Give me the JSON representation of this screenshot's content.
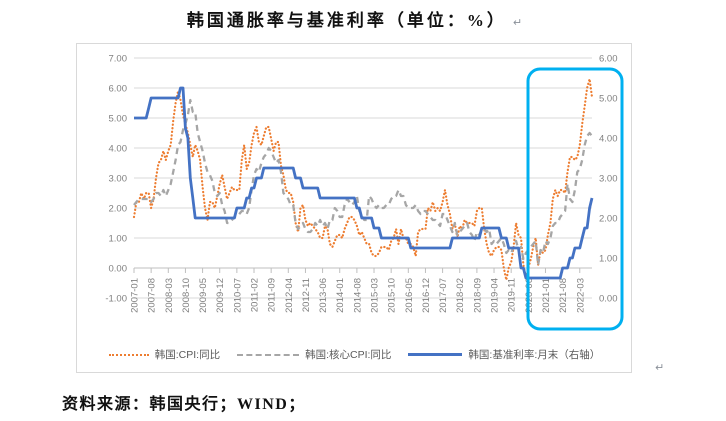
{
  "title": {
    "text": "韩国通胀率与基准利率（单位：%）",
    "paragraph_mark": "↵"
  },
  "source_note": "资料来源：韩国央行；WIND；",
  "trailing_paragraph_mark": "↵",
  "colors": {
    "cpi": "#ED7D31",
    "core_cpi": "#A6A6A6",
    "base_rate": "#4472C4",
    "highlight_box": "#00B0F0",
    "gridline": "#D9D9D9",
    "axis_line": "#BFBFBF",
    "axis_text": "#808080"
  },
  "chart_data": {
    "type": "line",
    "title": "韩国通胀率与基准利率（单位：%）",
    "grid": true,
    "legend_position": "bottom",
    "x_start": "2007-01",
    "x_end": "2022-08",
    "frequency": "monthly",
    "x_tick_labels": [
      "2007-01",
      "2007-08",
      "2008-03",
      "2008-10",
      "2009-05",
      "2009-12",
      "2010-07",
      "2011-02",
      "2011-09",
      "2012-04",
      "2012-11",
      "2013-06",
      "2014-01",
      "2014-08",
      "2015-03",
      "2015-10",
      "2016-05",
      "2016-12",
      "2017-07",
      "2018-02",
      "2018-09",
      "2019-04",
      "2019-11",
      "2020-06",
      "2021-01",
      "2021-08",
      "2022-03"
    ],
    "x_tick_step_months": 7,
    "left_axis": {
      "min": -1,
      "max": 7,
      "tick_labels": [
        "7.00",
        "6.00",
        "5.00",
        "4.00",
        "3.00",
        "2.00",
        "1.00",
        "0.00",
        "-1.00"
      ]
    },
    "right_axis": {
      "min": 0,
      "max": 6,
      "tick_labels": [
        "6.00",
        "5.00",
        "4.00",
        "3.00",
        "2.00",
        "1.00",
        "0.00"
      ]
    },
    "highlight_box": {
      "color": "#00B0F0",
      "covers_from": "2020-12",
      "covers_to": "2022-08"
    },
    "series": [
      {
        "name": "韩国:CPI:同比",
        "axis": "left",
        "style": "dotted",
        "color": "#ED7D31",
        "values": [
          1.7,
          2.2,
          2.2,
          2.5,
          2.3,
          2.5,
          2.5,
          2.0,
          2.3,
          3.0,
          3.5,
          3.6,
          3.9,
          3.6,
          3.9,
          4.1,
          4.9,
          5.5,
          5.9,
          5.6,
          5.1,
          4.8,
          4.5,
          4.1,
          3.7,
          4.1,
          3.9,
          3.6,
          2.7,
          2.0,
          1.6,
          2.2,
          2.2,
          2.0,
          2.4,
          2.8,
          3.1,
          2.7,
          2.3,
          2.5,
          2.7,
          2.6,
          2.6,
          2.6,
          3.6,
          4.1,
          3.3,
          3.5,
          4.1,
          4.5,
          4.7,
          4.2,
          4.1,
          4.4,
          4.7,
          4.7,
          4.3,
          3.9,
          4.2,
          4.2,
          3.4,
          3.1,
          2.6,
          2.5,
          2.5,
          2.2,
          1.5,
          1.2,
          2.0,
          2.1,
          1.6,
          1.4,
          1.5,
          1.4,
          1.3,
          1.2,
          1.0,
          1.0,
          1.4,
          1.3,
          0.8,
          0.7,
          0.9,
          1.1,
          1.1,
          1.0,
          1.3,
          1.5,
          1.7,
          1.7,
          1.6,
          1.4,
          1.1,
          1.2,
          1.0,
          0.8,
          0.8,
          0.5,
          0.4,
          0.4,
          0.5,
          0.7,
          0.7,
          0.7,
          0.6,
          0.9,
          1.0,
          1.3,
          0.8,
          1.3,
          1.0,
          1.0,
          0.8,
          0.8,
          0.7,
          0.4,
          1.2,
          1.3,
          1.3,
          1.3,
          2.0,
          1.9,
          2.2,
          1.9,
          2.0,
          1.9,
          2.2,
          2.6,
          2.1,
          1.8,
          1.3,
          1.5,
          1.0,
          1.4,
          1.3,
          1.6,
          1.5,
          1.5,
          1.5,
          1.4,
          1.9,
          2.0,
          2.0,
          1.3,
          0.8,
          0.5,
          0.4,
          0.6,
          0.7,
          0.7,
          0.6,
          0.0,
          -0.4,
          0.0,
          0.2,
          0.7,
          1.5,
          1.1,
          1.0,
          0.1,
          -0.3,
          0.0,
          0.3,
          0.7,
          1.0,
          0.1,
          0.6,
          0.5,
          0.6,
          1.1,
          1.5,
          2.3,
          2.6,
          2.4,
          2.6,
          2.6,
          2.5,
          3.2,
          3.7,
          3.7,
          3.6,
          3.7,
          4.1,
          4.8,
          5.4,
          6.0,
          6.3,
          5.7
        ]
      },
      {
        "name": "韩国:核心CPI:同比",
        "axis": "left",
        "style": "dashed",
        "color": "#A6A6A6",
        "values": [
          2.1,
          2.2,
          2.3,
          2.3,
          2.3,
          2.3,
          2.3,
          2.2,
          2.3,
          2.5,
          2.5,
          2.4,
          2.6,
          2.4,
          2.6,
          2.8,
          3.2,
          3.6,
          4.1,
          4.2,
          4.6,
          4.8,
          5.1,
          5.6,
          5.2,
          5.2,
          4.5,
          4.2,
          3.9,
          3.5,
          3.2,
          3.1,
          2.9,
          2.5,
          2.4,
          2.5,
          2.1,
          1.9,
          1.5,
          1.5,
          1.6,
          1.7,
          1.7,
          1.8,
          1.9,
          1.9,
          1.8,
          2.0,
          2.6,
          3.1,
          3.3,
          3.2,
          3.5,
          3.7,
          3.8,
          4.0,
          3.9,
          3.7,
          3.5,
          3.6,
          3.2,
          2.5,
          2.4,
          2.3,
          2.1,
          2.1,
          1.5,
          1.3,
          1.4,
          1.5,
          1.3,
          1.2,
          1.2,
          1.3,
          1.5,
          1.4,
          1.6,
          1.4,
          1.5,
          1.3,
          1.6,
          1.6,
          2.0,
          1.9,
          1.7,
          1.7,
          2.1,
          2.3,
          2.2,
          2.1,
          2.2,
          2.4,
          1.9,
          1.8,
          1.6,
          1.6,
          2.4,
          2.3,
          2.1,
          2.0,
          2.1,
          2.0,
          2.0,
          2.1,
          2.1,
          2.3,
          2.4,
          2.4,
          2.6,
          2.4,
          2.4,
          2.1,
          2.0,
          2.0,
          2.0,
          2.1,
          1.9,
          1.8,
          1.9,
          1.9,
          1.8,
          1.7,
          1.6,
          1.6,
          1.5,
          1.4,
          1.8,
          1.8,
          1.6,
          1.4,
          1.2,
          1.5,
          1.1,
          1.2,
          1.3,
          1.4,
          1.5,
          1.2,
          1.1,
          0.9,
          1.2,
          1.1,
          1.3,
          1.3,
          1.2,
          1.3,
          0.8,
          0.9,
          0.8,
          0.9,
          1.0,
          0.8,
          0.5,
          0.6,
          0.5,
          0.7,
          0.9,
          0.6,
          0.7,
          0.3,
          0.5,
          0.6,
          0.7,
          0.8,
          0.9,
          0.1,
          0.6,
          0.5,
          0.9,
          0.8,
          1.0,
          1.4,
          1.5,
          1.5,
          1.7,
          1.8,
          1.9,
          2.8,
          2.3,
          2.2,
          2.6,
          3.2,
          3.3,
          3.6,
          4.1,
          4.4,
          4.5,
          4.4
        ]
      },
      {
        "name": "韩国:基准利率:月末（右轴）",
        "axis": "right",
        "style": "solid",
        "color": "#4472C4",
        "values": [
          4.5,
          4.5,
          4.5,
          4.5,
          4.5,
          4.5,
          4.75,
          5.0,
          5.0,
          5.0,
          5.0,
          5.0,
          5.0,
          5.0,
          5.0,
          5.0,
          5.0,
          5.0,
          5.0,
          5.25,
          5.25,
          4.25,
          4.0,
          3.0,
          2.5,
          2.0,
          2.0,
          2.0,
          2.0,
          2.0,
          2.0,
          2.0,
          2.0,
          2.0,
          2.0,
          2.0,
          2.0,
          2.0,
          2.0,
          2.0,
          2.0,
          2.0,
          2.25,
          2.25,
          2.25,
          2.25,
          2.5,
          2.5,
          2.75,
          2.75,
          3.0,
          3.0,
          3.0,
          3.25,
          3.25,
          3.25,
          3.25,
          3.25,
          3.25,
          3.25,
          3.25,
          3.25,
          3.25,
          3.25,
          3.25,
          3.25,
          3.0,
          3.0,
          3.0,
          2.75,
          2.75,
          2.75,
          2.75,
          2.75,
          2.75,
          2.75,
          2.5,
          2.5,
          2.5,
          2.5,
          2.5,
          2.5,
          2.5,
          2.5,
          2.5,
          2.5,
          2.5,
          2.5,
          2.5,
          2.5,
          2.5,
          2.25,
          2.25,
          2.0,
          2.0,
          2.0,
          2.0,
          2.0,
          1.75,
          1.75,
          1.75,
          1.5,
          1.5,
          1.5,
          1.5,
          1.5,
          1.5,
          1.5,
          1.5,
          1.5,
          1.5,
          1.5,
          1.5,
          1.25,
          1.25,
          1.25,
          1.25,
          1.25,
          1.25,
          1.25,
          1.25,
          1.25,
          1.25,
          1.25,
          1.25,
          1.25,
          1.25,
          1.25,
          1.25,
          1.25,
          1.5,
          1.5,
          1.5,
          1.5,
          1.5,
          1.5,
          1.5,
          1.5,
          1.5,
          1.5,
          1.5,
          1.5,
          1.75,
          1.75,
          1.75,
          1.75,
          1.75,
          1.75,
          1.75,
          1.75,
          1.5,
          1.5,
          1.5,
          1.25,
          1.25,
          1.25,
          1.25,
          1.25,
          0.75,
          0.75,
          0.5,
          0.5,
          0.5,
          0.5,
          0.5,
          0.5,
          0.5,
          0.5,
          0.5,
          0.5,
          0.5,
          0.5,
          0.5,
          0.5,
          0.5,
          0.75,
          0.75,
          0.75,
          1.0,
          1.0,
          1.25,
          1.25,
          1.25,
          1.5,
          1.75,
          1.75,
          2.25,
          2.5
        ]
      }
    ]
  }
}
